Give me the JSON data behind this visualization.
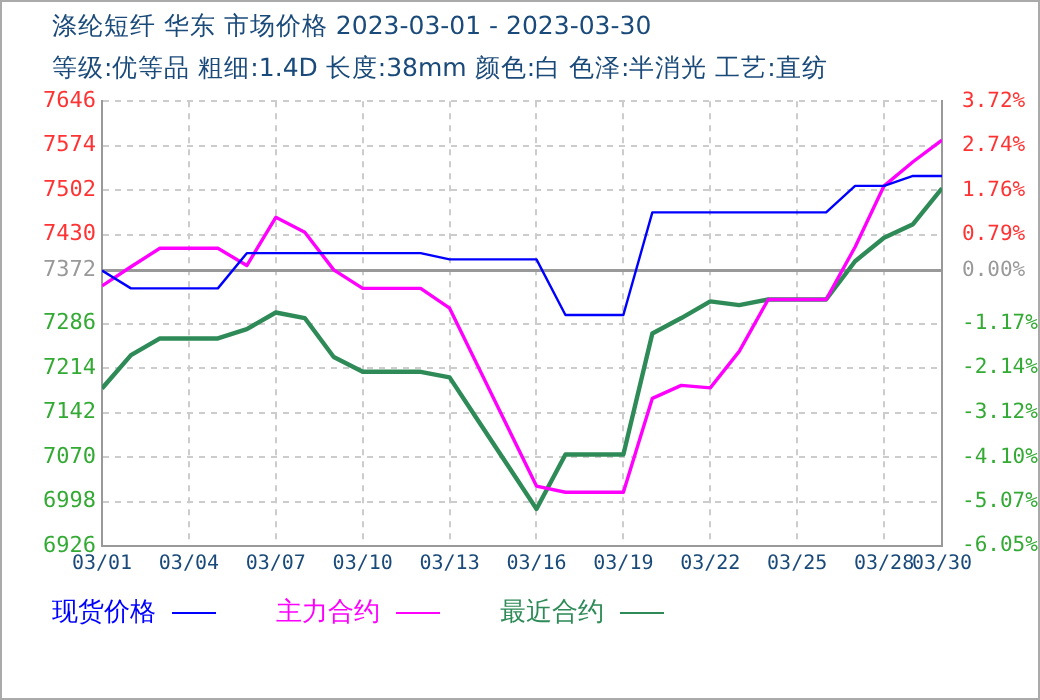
{
  "chart_data": {
    "type": "line",
    "title": "涤纶短纤 华东 市场价格 2023-03-01 - 2023-03-30",
    "subtitle": "等级:优等品 粗细:1.4D 长度:38mm 颜色:白 色泽:半消光 工艺:直纺",
    "x": [
      "--03-01",
      "--03-02",
      "--03-03",
      "--03-04",
      "--03-05",
      "--03-06",
      "--03-07",
      "--03-08",
      "--03-09",
      "--03-10",
      "--03-11",
      "--03-12",
      "--03-13",
      "--03-14",
      "--03-15",
      "--03-16",
      "--03-17",
      "--03-18",
      "--03-19",
      "--03-20",
      "--03-21",
      "--03-22",
      "--03-23",
      "--03-24",
      "--03-25",
      "--03-26",
      "--03-27",
      "--03-28",
      "--03-29",
      "--03-30"
    ],
    "series": [
      {
        "name": "现货价格",
        "color": "#0000ff",
        "values": [
          7372,
          7343,
          7343,
          7343,
          7343,
          7400,
          7400,
          7400,
          7400,
          7400,
          7400,
          7400,
          7390,
          7390,
          7390,
          7390,
          7300,
          7300,
          7300,
          7466,
          7466,
          7466,
          7466,
          7466,
          7466,
          7466,
          7509,
          7509,
          7525,
          7525
        ]
      },
      {
        "name": "主力合约",
        "color": "#ff00ff",
        "values": [
          7347,
          7378,
          7408,
          7408,
          7408,
          7380,
          7458,
          7434,
          7373,
          7343,
          7343,
          7343,
          7311,
          7215,
          7119,
          7023,
          7013,
          7013,
          7013,
          7165,
          7186,
          7182,
          7241,
          7325,
          7325,
          7325,
          7410,
          7509,
          7548,
          7583
        ]
      },
      {
        "name": "最近合约",
        "color": "#2e8b57",
        "values": [
          7181,
          7235,
          7262,
          7262,
          7262,
          7277,
          7304,
          7295,
          7232,
          7208,
          7208,
          7208,
          7199,
          7128,
          7057,
          6986,
          7074,
          7074,
          7074,
          7270,
          7295,
          7322,
          7316,
          7325,
          7325,
          7325,
          7387,
          7425,
          7447,
          7505
        ]
      }
    ],
    "xlim": [
      "--03-01",
      "--03-30"
    ],
    "xticks": [
      {
        "value": "--03-01",
        "label": "03/01"
      },
      {
        "value": "--03-04",
        "label": "03/04"
      },
      {
        "value": "--03-07",
        "label": "03/07"
      },
      {
        "value": "--03-10",
        "label": "03/10"
      },
      {
        "value": "--03-13",
        "label": "03/13"
      },
      {
        "value": "--03-16",
        "label": "03/16"
      },
      {
        "value": "--03-19",
        "label": "03/19"
      },
      {
        "value": "--03-22",
        "label": "03/22"
      },
      {
        "value": "--03-25",
        "label": "03/25"
      },
      {
        "value": "--03-28",
        "label": "03/28"
      },
      {
        "value": "--03-30",
        "label": "03/30"
      }
    ],
    "ylim": [
      6926,
      7646
    ],
    "yticks": [
      6926,
      6998,
      7070,
      7142,
      7214,
      7286,
      7372,
      7430,
      7502,
      7574,
      7646
    ],
    "y2lim": [
      -6.05,
      3.72
    ],
    "y2ticks": [
      {
        "value": -6.05,
        "label": "-6.05%"
      },
      {
        "value": -5.07,
        "label": "-5.07%"
      },
      {
        "value": -4.1,
        "label": "-4.10%"
      },
      {
        "value": -3.12,
        "label": "-3.12%"
      },
      {
        "value": -2.14,
        "label": "-2.14%"
      },
      {
        "value": -1.17,
        "label": "-1.17%"
      },
      {
        "value": 0,
        "label": "0.00%"
      },
      {
        "value": 0.79,
        "label": "0.79%"
      },
      {
        "value": 1.76,
        "label": "1.76%"
      },
      {
        "value": 2.74,
        "label": "2.74%"
      },
      {
        "value": 3.72,
        "label": "3.72%"
      }
    ],
    "ref_lines": [
      {
        "axis": "y",
        "value": 7372,
        "color": "#999999"
      }
    ],
    "grid": true,
    "legend": "bottom",
    "marker": "none",
    "line_style": "solid"
  }
}
